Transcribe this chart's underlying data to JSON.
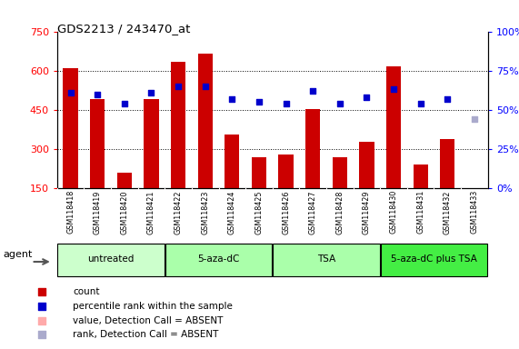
{
  "title": "GDS2213 / 243470_at",
  "samples": [
    "GSM118418",
    "GSM118419",
    "GSM118420",
    "GSM118421",
    "GSM118422",
    "GSM118423",
    "GSM118424",
    "GSM118425",
    "GSM118426",
    "GSM118427",
    "GSM118428",
    "GSM118429",
    "GSM118430",
    "GSM118431",
    "GSM118432",
    "GSM118433"
  ],
  "count_values": [
    610,
    490,
    210,
    490,
    635,
    665,
    355,
    270,
    280,
    455,
    270,
    330,
    615,
    240,
    340,
    150
  ],
  "percentile_values": [
    61,
    60,
    54,
    61,
    65,
    65,
    57,
    55,
    54,
    62,
    54,
    58,
    63,
    54,
    57,
    44
  ],
  "absent_flags": [
    false,
    false,
    false,
    false,
    false,
    false,
    false,
    false,
    false,
    false,
    false,
    false,
    false,
    false,
    false,
    true
  ],
  "absent_rank_flags": [
    false,
    false,
    false,
    false,
    false,
    false,
    false,
    false,
    false,
    false,
    false,
    false,
    false,
    false,
    false,
    true
  ],
  "group_labels": [
    "untreated",
    "5-aza-dC",
    "TSA",
    "5-aza-dC plus TSA"
  ],
  "group_starts": [
    0,
    4,
    8,
    12
  ],
  "group_ends": [
    3,
    7,
    11,
    15
  ],
  "group_colors": [
    "#ccffcc",
    "#aaffaa",
    "#aaffaa",
    "#44ee44"
  ],
  "ylim_left": [
    150,
    750
  ],
  "ylim_right": [
    0,
    100
  ],
  "yticks_left": [
    150,
    300,
    450,
    600,
    750
  ],
  "yticks_right": [
    0,
    25,
    50,
    75,
    100
  ],
  "bar_color": "#cc0000",
  "scatter_color": "#0000cc",
  "absent_bar_color": "#ffaaaa",
  "absent_rank_color": "#aaaacc",
  "bar_width": 0.55,
  "plot_bg": "#ffffff",
  "gridline_color": "#000000",
  "tick_gray": "#c8c8c8"
}
